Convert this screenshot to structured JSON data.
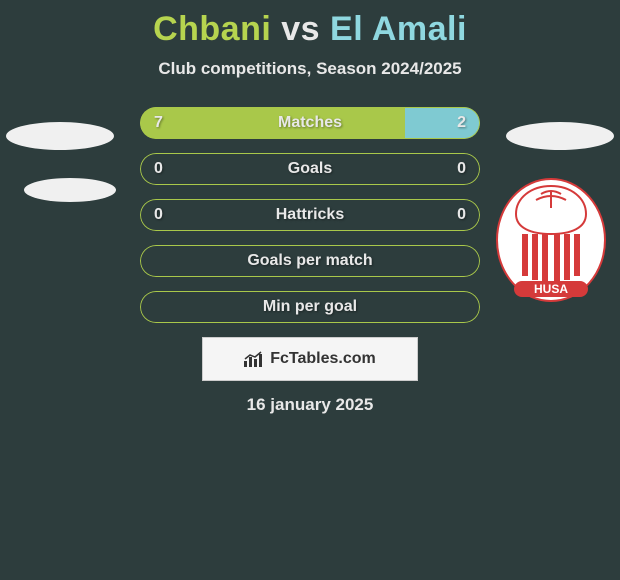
{
  "title": {
    "player1": "Chbani",
    "vs": "vs",
    "player2": "El Amali"
  },
  "subtitle": "Club competitions, Season 2024/2025",
  "colors": {
    "left": "#a9c84a",
    "right": "#7fcad2",
    "track": "transparent",
    "text": "#e8e8e8",
    "badge_red": "#d53a3a",
    "badge_white": "#ffffff"
  },
  "rows": [
    {
      "label": "Matches",
      "leftVal": "7",
      "rightVal": "2",
      "leftPct": 77.8,
      "fill": "split"
    },
    {
      "label": "Goals",
      "leftVal": "0",
      "rightVal": "0",
      "leftPct": 0,
      "fill": "none"
    },
    {
      "label": "Hattricks",
      "leftVal": "0",
      "rightVal": "0",
      "leftPct": 0,
      "fill": "none"
    },
    {
      "label": "Goals per match",
      "leftVal": "",
      "rightVal": "",
      "leftPct": 0,
      "fill": "none"
    },
    {
      "label": "Min per goal",
      "leftVal": "",
      "rightVal": "",
      "leftPct": 0,
      "fill": "none"
    }
  ],
  "watermark": "FcTables.com",
  "date": "16 january 2025",
  "badge_text": "HUSA"
}
